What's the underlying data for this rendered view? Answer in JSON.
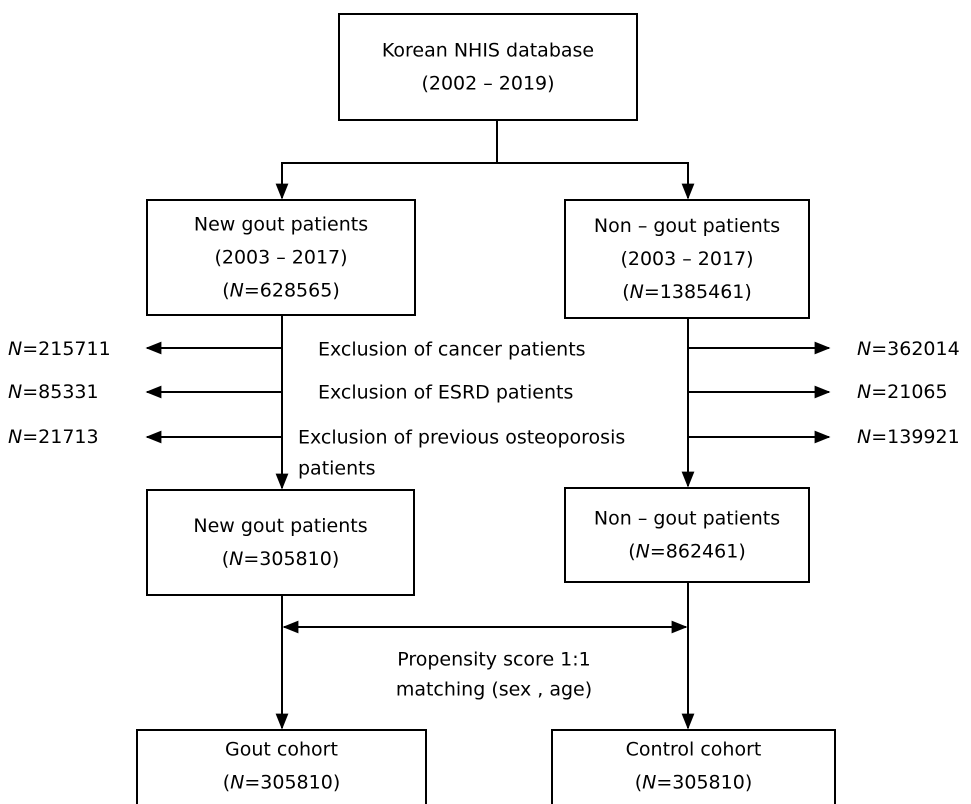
{
  "nodes": [
    {
      "lines": [
        [
          "Korean NHIS database"
        ],
        [
          "(2002 – 2019)"
        ]
      ]
    },
    {
      "lines": [
        [
          "New gout patients"
        ],
        [
          "(2003 – 2017)"
        ],
        [
          "(",
          {
            "text": "N",
            "italic": true
          },
          "=628565)"
        ]
      ]
    },
    {
      "lines": [
        [
          "Non – gout patients"
        ],
        [
          "(2003 – 2017)"
        ],
        [
          "(",
          {
            "text": "N",
            "italic": true
          },
          "=1385461)"
        ]
      ]
    },
    {
      "lines": [
        [
          "New gout patients"
        ],
        [
          "(",
          {
            "text": "N",
            "italic": true
          },
          "=305810)"
        ]
      ]
    },
    {
      "lines": [
        [
          "Non – gout patients"
        ],
        [
          "(",
          {
            "text": "N",
            "italic": true
          },
          "=862461)"
        ]
      ]
    },
    {
      "lines": [
        [
          "Gout cohort"
        ],
        [
          "(",
          {
            "text": "N",
            "italic": true
          },
          "=305810)"
        ]
      ]
    },
    {
      "lines": [
        [
          "Control cohort"
        ],
        [
          "(",
          {
            "text": "N",
            "italic": true
          },
          "=305810)"
        ]
      ]
    }
  ],
  "exclusions": [
    {
      "label": [
        "Exclusion of cancer patients"
      ],
      "left": [
        {
          "text": "N",
          "italic": true
        },
        "=215711"
      ],
      "right": [
        {
          "text": "N",
          "italic": true
        },
        "=362014"
      ]
    },
    {
      "label": [
        "Exclusion of ESRD patients"
      ],
      "left": [
        {
          "text": "N",
          "italic": true
        },
        "=85331"
      ],
      "right": [
        {
          "text": "N",
          "italic": true
        },
        "=21065"
      ]
    },
    {
      "label": [
        "Exclusion of previous osteoporosis",
        "patients"
      ],
      "left": [
        {
          "text": "N",
          "italic": true
        },
        "=21713"
      ],
      "right": [
        {
          "text": "N",
          "italic": true
        },
        "=139921"
      ]
    }
  ],
  "matching": {
    "lines": [
      "Propensity score 1:1",
      "matching (sex , age)"
    ]
  }
}
